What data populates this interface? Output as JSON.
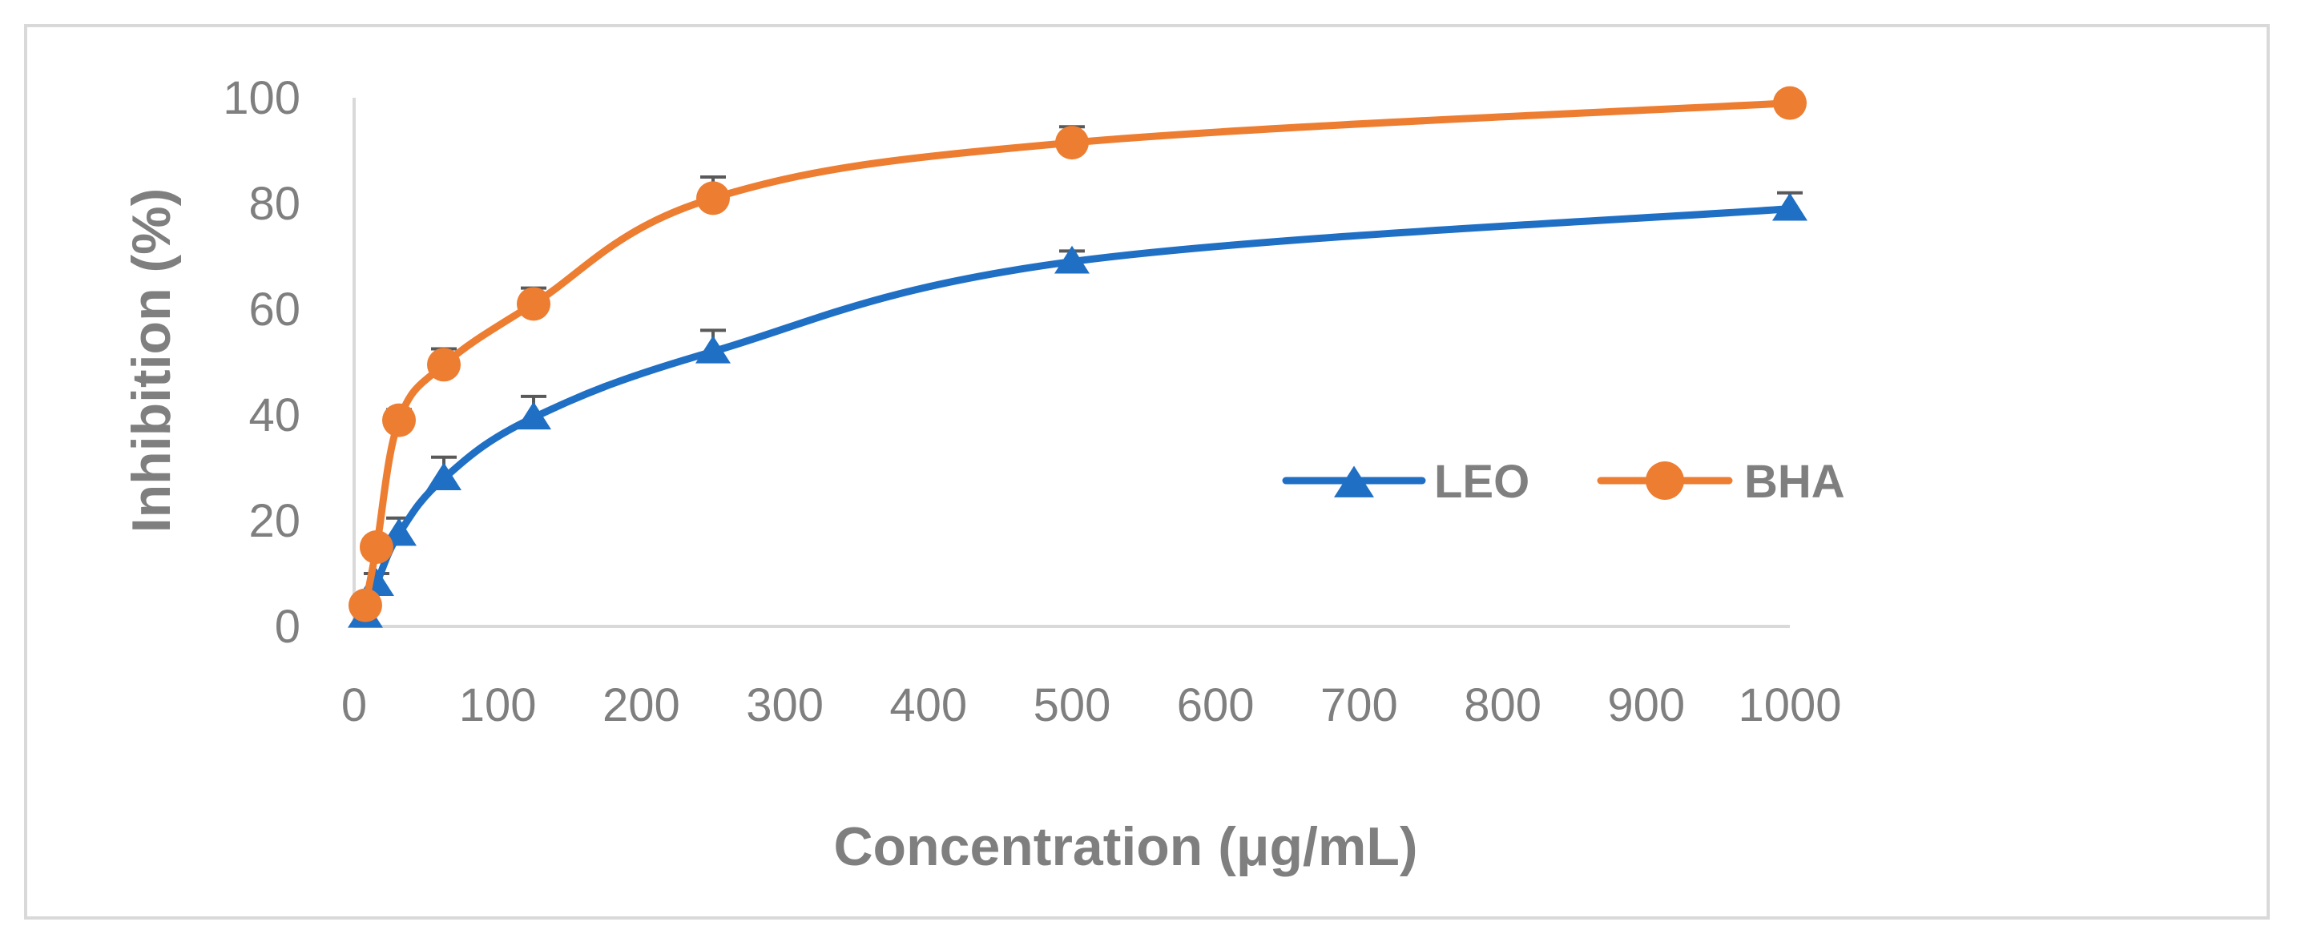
{
  "chart_data": {
    "type": "line",
    "title": "",
    "xlabel": "Concentration (μg/mL)",
    "ylabel": "Inhibition (%)",
    "xlim": [
      0,
      1000
    ],
    "ylim": [
      0,
      100
    ],
    "x_ticks": [
      "0",
      "100",
      "200",
      "300",
      "400",
      "500",
      "600",
      "700",
      "800",
      "900",
      "1000"
    ],
    "y_ticks": [
      "0",
      "20",
      "40",
      "60",
      "80",
      "100"
    ],
    "grid": false,
    "legend_position": "center-right",
    "series": [
      {
        "name": "LEO",
        "color": "#1f6fc5",
        "marker": "triangle",
        "x": [
          7.8,
          15.6,
          31.25,
          62.5,
          125,
          250,
          500,
          1000
        ],
        "y": [
          2,
          8,
          17.5,
          28,
          39.5,
          52,
          69,
          79
        ],
        "error": [
          1,
          2,
          3,
          4,
          4,
          4,
          2,
          3
        ]
      },
      {
        "name": "BHA",
        "color": "#ed7d31",
        "marker": "circle",
        "x": [
          7.8,
          15.6,
          31.25,
          62.5,
          125,
          250,
          500,
          1000
        ],
        "y": [
          4,
          15,
          39,
          49.5,
          61,
          81,
          91.5,
          99
        ],
        "error": [
          1,
          1.5,
          2,
          3,
          3,
          4,
          3,
          1
        ]
      }
    ]
  }
}
